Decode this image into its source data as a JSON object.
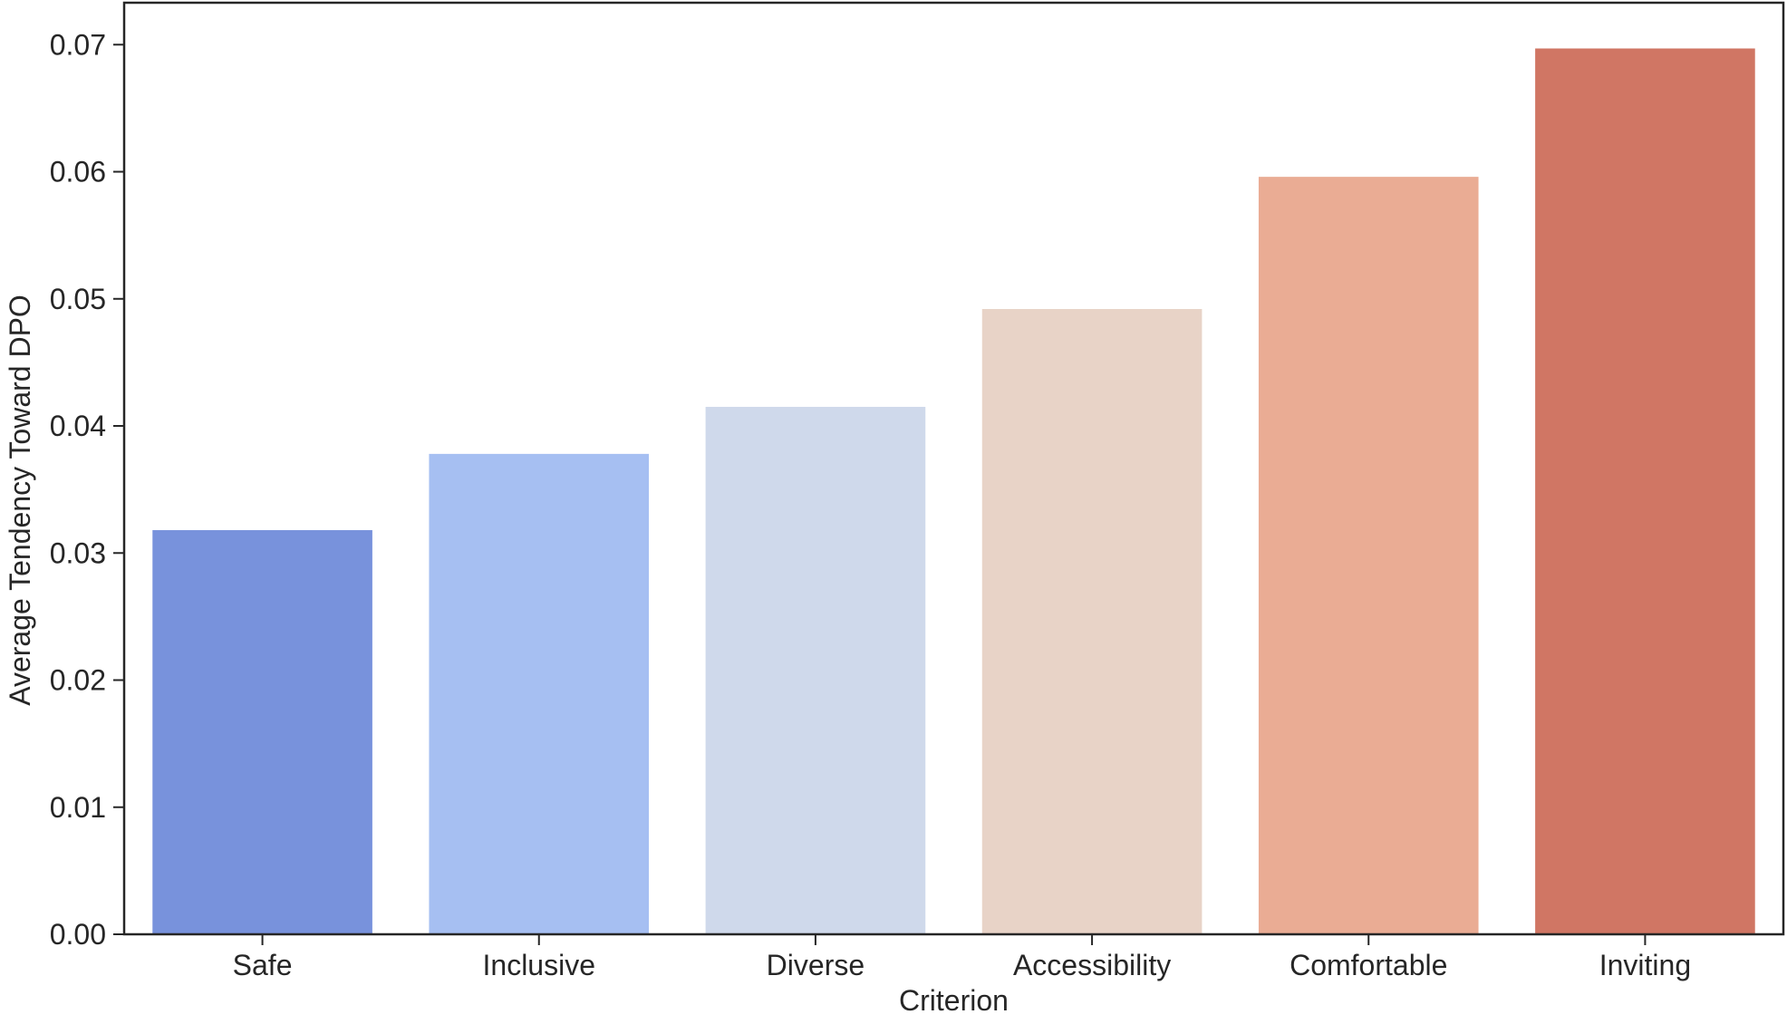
{
  "chart_data": {
    "type": "bar",
    "title": "",
    "xlabel": "Criterion",
    "ylabel": "Average Tendency Toward DPO",
    "categories": [
      "Safe",
      "Inclusive",
      "Diverse",
      "Accessibility",
      "Comfortable",
      "Inviting"
    ],
    "values": [
      0.0318,
      0.0378,
      0.0415,
      0.0492,
      0.0596,
      0.0697
    ],
    "colors": [
      "#7892dc",
      "#a6bff2",
      "#cfd9eb",
      "#e8d3c7",
      "#eaac94",
      "#d07664"
    ],
    "ylim": [
      0,
      0.0733
    ],
    "yticks": [
      "0.00",
      "0.01",
      "0.02",
      "0.03",
      "0.04",
      "0.05",
      "0.06",
      "0.07"
    ],
    "grid": false,
    "legend": "none"
  }
}
